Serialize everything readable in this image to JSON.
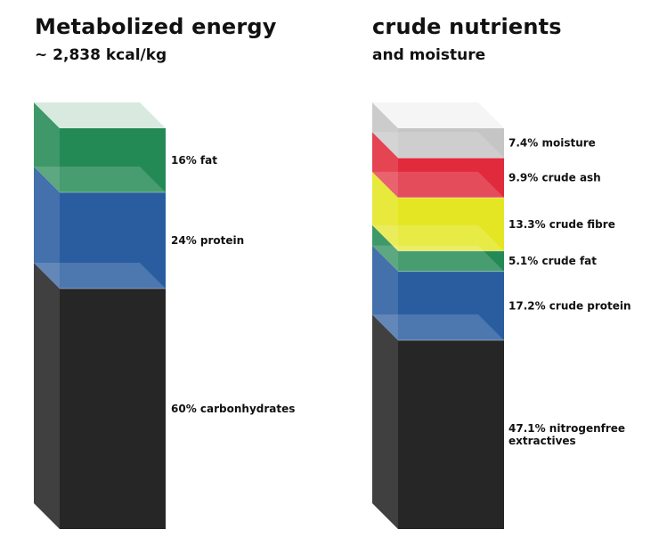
{
  "chart_data": [
    {
      "type": "stacked-bar",
      "title": "Metabolized energy",
      "subtitle": "~ 2,838 kcal/kg",
      "unit": "%",
      "segments": [
        {
          "label": "60% carbonhydrates",
          "value": 60,
          "color": "#262626"
        },
        {
          "label": "24% protein",
          "value": 24,
          "color": "#2a5da0"
        },
        {
          "label": "16% fat",
          "value": 16,
          "color": "#248a55"
        }
      ]
    },
    {
      "type": "stacked-bar",
      "title": "crude nutrients",
      "subtitle": "and moisture",
      "unit": "%",
      "segments": [
        {
          "label": "47.1% nitrogenfree extractives",
          "value": 47.1,
          "color": "#262626"
        },
        {
          "label": "17.2% crude protein",
          "value": 17.2,
          "color": "#2a5da0"
        },
        {
          "label": "5.1% crude fat",
          "value": 5.1,
          "color": "#248a55"
        },
        {
          "label": "13.3% crude fibre",
          "value": 13.3,
          "color": "#e4e623"
        },
        {
          "label": "9.9% crude ash",
          "value": 9.9,
          "color": "#e12a3c"
        },
        {
          "label": "7.4% moisture",
          "value": 7.4,
          "color": "#c5c5c5"
        }
      ]
    }
  ]
}
